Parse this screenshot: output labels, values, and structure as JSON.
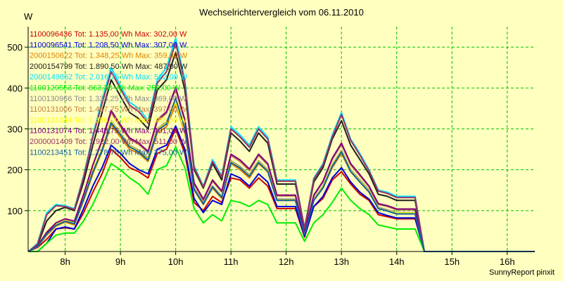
{
  "chart_data": {
    "type": "line",
    "title": "Wechselrichtervergleich vom 06.11.2010",
    "ylabel": "W",
    "footer": "SunnyReport pinxit",
    "xlim": [
      7.33,
      16.5
    ],
    "ylim": [
      0,
      550
    ],
    "x_ticks": [
      {
        "value": 8,
        "label": "8h"
      },
      {
        "value": 9,
        "label": "9h"
      },
      {
        "value": 10,
        "label": "10h"
      },
      {
        "value": 11,
        "label": "11h"
      },
      {
        "value": 12,
        "label": "12h"
      },
      {
        "value": 13,
        "label": "13h"
      },
      {
        "value": 14,
        "label": "14h"
      },
      {
        "value": 15,
        "label": "15h"
      },
      {
        "value": 16,
        "label": "16h"
      }
    ],
    "y_ticks": [
      {
        "value": 100,
        "label": "100"
      },
      {
        "value": 200,
        "label": "200"
      },
      {
        "value": 300,
        "label": "300"
      },
      {
        "value": 400,
        "label": "400"
      },
      {
        "value": 500,
        "label": "500"
      }
    ],
    "grid": true,
    "legend_position": "top-left",
    "x": [
      "07:20",
      "07:30",
      "07:40",
      "07:50",
      "08:00",
      "08:10",
      "08:20",
      "08:30",
      "08:40",
      "08:50",
      "09:00",
      "09:10",
      "09:20",
      "09:30",
      "09:40",
      "09:50",
      "10:00",
      "10:10",
      "10:20",
      "10:30",
      "10:40",
      "10:50",
      "11:00",
      "11:10",
      "11:20",
      "11:30",
      "11:40",
      "11:50",
      "12:00",
      "12:10",
      "12:20",
      "12:30",
      "12:40",
      "12:50",
      "13:00",
      "13:10",
      "13:20",
      "13:30",
      "13:40",
      "13:50",
      "14:00",
      "14:10",
      "14:20",
      "14:30",
      "14:40",
      "14:50",
      "15:00",
      "15:10",
      "15:20",
      "15:30",
      "15:40",
      "15:50",
      "16:00",
      "16:10",
      "16:20",
      "16:30"
    ],
    "series": [
      {
        "name": "1100096436 Tot: 1.135,00 Wh Max: 302,00 W",
        "color": "#cc0000",
        "values": [
          0,
          10,
          30,
          55,
          58,
          55,
          95,
          145,
          190,
          250,
          230,
          205,
          195,
          180,
          240,
          250,
          300,
          240,
          120,
          100,
          135,
          120,
          180,
          175,
          155,
          180,
          160,
          105,
          105,
          105,
          35,
          110,
          130,
          175,
          195,
          165,
          140,
          125,
          90,
          85,
          80,
          80,
          80,
          0,
          0,
          0,
          0,
          0,
          0,
          0,
          0,
          0,
          0,
          0,
          0,
          0
        ]
      },
      {
        "name": "1100096541 Tot: 1.208,50 Wh Max: 307,00 W",
        "color": "#0000dd",
        "values": [
          0,
          0,
          20,
          55,
          60,
          55,
          105,
          160,
          205,
          260,
          240,
          215,
          200,
          190,
          250,
          260,
          307,
          250,
          130,
          95,
          125,
          115,
          190,
          180,
          160,
          190,
          170,
          110,
          110,
          110,
          38,
          110,
          135,
          180,
          205,
          170,
          145,
          128,
          95,
          88,
          82,
          82,
          82,
          0,
          0,
          0,
          0,
          0,
          0,
          0,
          0,
          0,
          0,
          0,
          0,
          0
        ]
      },
      {
        "name": "2000150622 Tot: 1.348,25 Wh Max: 359,00 W",
        "color": "#e08000",
        "values": [
          0,
          12,
          40,
          62,
          72,
          65,
          125,
          190,
          245,
          310,
          280,
          250,
          240,
          220,
          290,
          305,
          359,
          290,
          150,
          115,
          155,
          130,
          215,
          200,
          180,
          215,
          195,
          125,
          125,
          125,
          42,
          125,
          155,
          205,
          240,
          195,
          170,
          145,
          105,
          100,
          92,
          92,
          92,
          0,
          0,
          0,
          0,
          0,
          0,
          0,
          0,
          0,
          0,
          0,
          0,
          0
        ]
      },
      {
        "name": "2000154799 Tot: 1.890,50 Wh Max: 487,00 W",
        "color": "#202020",
        "values": [
          0,
          15,
          75,
          100,
          108,
          100,
          170,
          260,
          340,
          420,
          380,
          340,
          325,
          300,
          395,
          420,
          487,
          395,
          200,
          155,
          215,
          175,
          290,
          270,
          245,
          290,
          265,
          165,
          165,
          165,
          55,
          170,
          205,
          275,
          320,
          260,
          225,
          190,
          140,
          135,
          125,
          125,
          125,
          0,
          0,
          0,
          0,
          0,
          0,
          0,
          0,
          0,
          0,
          0,
          0,
          0
        ]
      },
      {
        "name": "2000149862 Tot: 2.016,75 Wh Max: 522,00 W",
        "color": "#00e0ff",
        "values": [
          0,
          20,
          95,
          115,
          112,
          105,
          185,
          285,
          370,
          450,
          405,
          365,
          350,
          320,
          420,
          450,
          522,
          420,
          210,
          160,
          225,
          185,
          305,
          285,
          260,
          305,
          280,
          175,
          175,
          175,
          58,
          180,
          215,
          285,
          340,
          275,
          240,
          200,
          150,
          145,
          135,
          135,
          135,
          0,
          0,
          0,
          0,
          0,
          0,
          0,
          0,
          0,
          0,
          0,
          0,
          0
        ]
      },
      {
        "name": "1100129553 Tot: 863,38 Wh Max: 256,00 W",
        "color": "#00ee00",
        "values": [
          0,
          0,
          20,
          40,
          45,
          45,
          75,
          115,
          165,
          215,
          200,
          180,
          165,
          140,
          200,
          210,
          256,
          205,
          105,
          70,
          90,
          75,
          125,
          120,
          110,
          125,
          115,
          70,
          70,
          70,
          25,
          70,
          90,
          120,
          155,
          125,
          105,
          90,
          65,
          60,
          55,
          55,
          55,
          0,
          0,
          0,
          0,
          0,
          0,
          0,
          0,
          0,
          0,
          0,
          0,
          0
        ]
      },
      {
        "name": "1100130966 Tot: 1.333,25 Wh Max: 369,00 W",
        "color": "#888888",
        "values": [
          0,
          12,
          42,
          65,
          75,
          68,
          128,
          195,
          250,
          320,
          290,
          260,
          248,
          228,
          300,
          318,
          369,
          298,
          155,
          118,
          160,
          135,
          222,
          208,
          188,
          222,
          200,
          128,
          128,
          128,
          43,
          128,
          160,
          212,
          248,
          200,
          175,
          150,
          108,
          102,
          95,
          95,
          95,
          0,
          0,
          0,
          0,
          0,
          0,
          0,
          0,
          0,
          0,
          0,
          0,
          0
        ]
      },
      {
        "name": "1100131006 Tot: 1.467,75 Wh Max: 397,00 W",
        "color": "#c08040",
        "values": [
          0,
          14,
          48,
          70,
          80,
          72,
          138,
          210,
          270,
          340,
          305,
          275,
          262,
          242,
          318,
          338,
          397,
          318,
          165,
          125,
          172,
          145,
          235,
          220,
          198,
          235,
          212,
          136,
          136,
          136,
          46,
          136,
          170,
          225,
          262,
          212,
          185,
          158,
          115,
          110,
          102,
          102,
          102,
          0,
          0,
          0,
          0,
          0,
          0,
          0,
          0,
          0,
          0,
          0,
          0,
          0
        ]
      },
      {
        "name": "1100131044 Tot: 1.386,00 Wh Max: 366,00 W",
        "color": "#ffff00",
        "values": [
          0,
          12,
          44,
          66,
          76,
          70,
          130,
          198,
          252,
          318,
          288,
          258,
          246,
          226,
          298,
          315,
          366,
          295,
          152,
          116,
          158,
          133,
          220,
          205,
          186,
          220,
          198,
          126,
          126,
          126,
          43,
          126,
          158,
          210,
          246,
          198,
          172,
          148,
          106,
          100,
          94,
          94,
          94,
          0,
          0,
          0,
          0,
          0,
          0,
          0,
          0,
          0,
          0,
          0,
          0,
          0
        ]
      },
      {
        "name": "1100131074 Tot: 1.448,75 Wh Max: 401,00 W",
        "color": "#800080",
        "values": [
          0,
          14,
          46,
          70,
          80,
          74,
          140,
          212,
          272,
          345,
          310,
          278,
          265,
          245,
          322,
          342,
          401,
          322,
          168,
          128,
          175,
          148,
          238,
          224,
          202,
          238,
          215,
          138,
          138,
          138,
          47,
          138,
          172,
          228,
          265,
          215,
          188,
          160,
          117,
          112,
          104,
          104,
          104,
          0,
          0,
          0,
          0,
          0,
          0,
          0,
          0,
          0,
          0,
          0,
          0,
          0
        ]
      },
      {
        "name": "2000001409 Tot: 1.922,00 Wh Max: 511,00 W",
        "color": "#993366",
        "values": [
          0,
          18,
          90,
          112,
          110,
          103,
          182,
          280,
          362,
          440,
          398,
          358,
          342,
          314,
          412,
          440,
          511,
          412,
          205,
          158,
          220,
          182,
          300,
          280,
          255,
          300,
          275,
          172,
          172,
          172,
          57,
          177,
          212,
          280,
          335,
          272,
          236,
          197,
          148,
          142,
          132,
          132,
          132,
          0,
          0,
          0,
          0,
          0,
          0,
          0,
          0,
          0,
          0,
          0,
          0,
          0
        ]
      },
      {
        "name": "1100213451 Tot: 1.278,75 Wh Max: 375,00 W",
        "color": "#1060a0",
        "values": [
          0,
          12,
          43,
          64,
          74,
          68,
          128,
          194,
          248,
          315,
          286,
          256,
          244,
          224,
          296,
          312,
          375,
          300,
          152,
          116,
          158,
          132,
          218,
          204,
          184,
          218,
          196,
          125,
          125,
          125,
          42,
          125,
          156,
          208,
          244,
          196,
          170,
          146,
          105,
          99,
          92,
          92,
          92,
          0,
          0,
          0,
          0,
          0,
          0,
          0,
          0,
          0,
          0,
          0,
          0,
          0
        ]
      }
    ]
  }
}
